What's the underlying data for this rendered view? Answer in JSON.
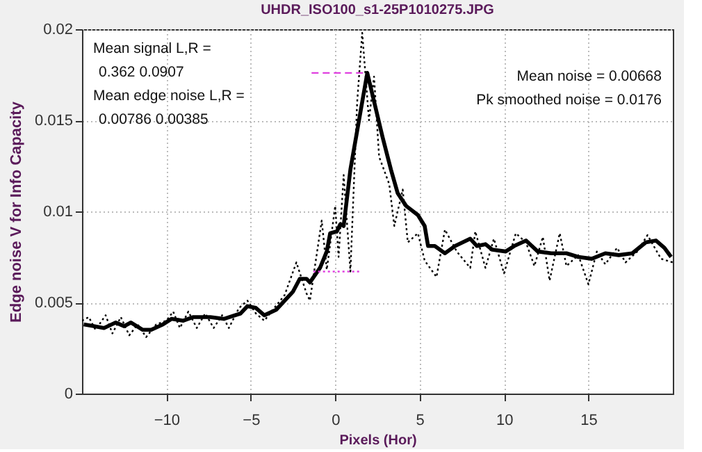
{
  "chart_data": {
    "type": "line",
    "title": "UHDR_ISO100_s1-25P1010275.JPG",
    "xlabel": "Pixels (Hor)",
    "ylabel": "Edge noise V for Info Capacity",
    "xlim": [
      -15,
      20
    ],
    "ylim": [
      0,
      0.02
    ],
    "xticks": [
      -10,
      -5,
      0,
      5,
      10,
      15
    ],
    "yticks": [
      0,
      0.005,
      0.01,
      0.015,
      0.02
    ],
    "grid": true,
    "annotations": [
      "Mean signal L,R =",
      "0.362  0.0907",
      "Mean edge noise L,R =",
      "0.00786  0.00385",
      "Mean noise = 0.00668",
      "Pk smoothed noise = 0.0176"
    ],
    "series": [
      {
        "color": "#000000",
        "line_style": "dotted",
        "x": [
          -15,
          -14.6,
          -14.2,
          -13.6,
          -13.2,
          -12.7,
          -12.2,
          -11.7,
          -11.2,
          -10.6,
          -10.0,
          -9.6,
          -9.2,
          -8.7,
          -8.2,
          -7.7,
          -7.2,
          -6.7,
          -6.3,
          -5.7,
          -5.2,
          -4.7,
          -4.2,
          -3.7,
          -3.0,
          -2.3,
          -1.7,
          -1.5,
          -0.8,
          -0.5,
          0.0,
          0.2,
          0.5,
          0.9,
          1.3,
          1.6,
          2.0,
          2.3,
          2.6,
          3.2,
          3.5,
          4.0,
          4.3,
          4.9,
          5.3,
          6.0,
          6.5,
          7.2,
          8.0,
          8.3,
          8.9,
          9.4,
          10.0,
          10.7,
          11.3,
          11.8,
          12.3,
          12.7,
          13.3,
          13.7,
          14.4,
          15.0,
          15.5,
          16.0,
          16.7,
          17.2,
          17.9,
          18.5,
          19.3,
          20.0
        ],
        "values": [
          0.004,
          0.0042,
          0.0035,
          0.0043,
          0.0033,
          0.0042,
          0.0032,
          0.0038,
          0.0031,
          0.0038,
          0.004,
          0.0045,
          0.0036,
          0.0045,
          0.0036,
          0.0044,
          0.0036,
          0.0043,
          0.0036,
          0.0047,
          0.0051,
          0.0044,
          0.004,
          0.0046,
          0.0054,
          0.0072,
          0.0055,
          0.0051,
          0.0095,
          0.0068,
          0.0103,
          0.0075,
          0.012,
          0.0067,
          0.016,
          0.0198,
          0.015,
          0.0174,
          0.013,
          0.0115,
          0.0092,
          0.0112,
          0.0083,
          0.0088,
          0.0073,
          0.0064,
          0.009,
          0.0078,
          0.0069,
          0.0089,
          0.0069,
          0.0085,
          0.0066,
          0.0088,
          0.0083,
          0.007,
          0.0086,
          0.0062,
          0.0088,
          0.007,
          0.0076,
          0.006,
          0.0078,
          0.0071,
          0.008,
          0.0072,
          0.0078,
          0.0087,
          0.0074,
          0.0072
        ]
      },
      {
        "color": "#000000",
        "line_style": "solid",
        "x": [
          -14.9,
          -14.3,
          -13.7,
          -13.0,
          -12.5,
          -12.1,
          -11.4,
          -10.9,
          -10.2,
          -9.7,
          -9.0,
          -8.4,
          -7.4,
          -6.6,
          -5.6,
          -5.2,
          -4.7,
          -4.2,
          -3.5,
          -3.1,
          -2.5,
          -2.1,
          -1.7,
          -1.5,
          -0.9,
          -0.5,
          -0.3,
          0.1,
          0.3,
          0.5,
          0.9,
          1.9,
          2.8,
          3.3,
          3.7,
          4.2,
          4.9,
          5.3,
          5.5,
          5.9,
          6.5,
          7.1,
          8.0,
          8.4,
          8.9,
          9.3,
          10.1,
          10.6,
          11.3,
          12.0,
          12.8,
          13.7,
          14.4,
          15.2,
          16.0,
          16.8,
          17.6,
          18.4,
          19.0,
          19.5,
          19.9
        ],
        "values": [
          0.0038,
          0.0037,
          0.0036,
          0.0039,
          0.0037,
          0.0039,
          0.0035,
          0.0035,
          0.0038,
          0.0041,
          0.004,
          0.0042,
          0.0042,
          0.0041,
          0.0044,
          0.0048,
          0.0047,
          0.0043,
          0.0046,
          0.005,
          0.0056,
          0.0063,
          0.0063,
          0.0061,
          0.0069,
          0.0078,
          0.0088,
          0.0089,
          0.0093,
          0.0092,
          0.0123,
          0.0176,
          0.0141,
          0.0123,
          0.011,
          0.0103,
          0.0098,
          0.0092,
          0.0081,
          0.0081,
          0.0077,
          0.0081,
          0.0085,
          0.0081,
          0.0082,
          0.0079,
          0.0078,
          0.0081,
          0.0084,
          0.0078,
          0.0077,
          0.0077,
          0.0075,
          0.0074,
          0.0077,
          0.0076,
          0.0077,
          0.0083,
          0.0084,
          0.008,
          0.0075
        ]
      },
      {
        "color": "#e040e0",
        "line_style": "dashed",
        "x": [
          -1.4,
          1.8
        ],
        "values": [
          0.0176,
          0.0176
        ]
      },
      {
        "color": "#e040e0",
        "line_style": "dotted",
        "x": [
          -1.3,
          1.5
        ],
        "values": [
          0.0067,
          0.0067
        ]
      }
    ]
  }
}
